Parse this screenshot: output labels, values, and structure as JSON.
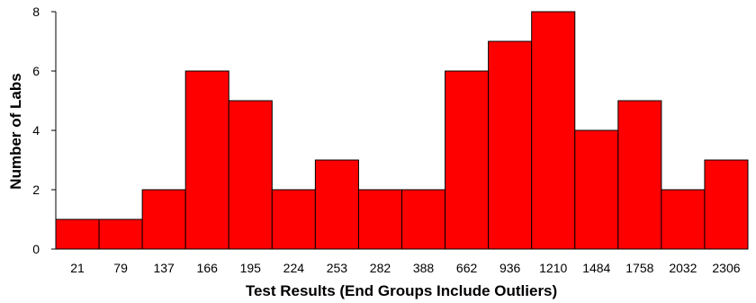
{
  "chart_data": {
    "type": "bar",
    "xlabel": "Test Results (End Groups Include Outliers)",
    "ylabel": "Number of Labs",
    "categories": [
      "21",
      "79",
      "137",
      "166",
      "195",
      "224",
      "253",
      "282",
      "388",
      "662",
      "936",
      "1210",
      "1484",
      "1758",
      "2032",
      "2306"
    ],
    "values": [
      1,
      1,
      2,
      6,
      5,
      2,
      3,
      2,
      2,
      6,
      7,
      8,
      4,
      5,
      2,
      3
    ],
    "ylim": [
      0,
      8
    ],
    "yticks": [
      "0",
      "2",
      "4",
      "6",
      "8"
    ],
    "grid": false,
    "legend": "none",
    "bar_color": "#ff0000",
    "edge_color": "#000000"
  }
}
